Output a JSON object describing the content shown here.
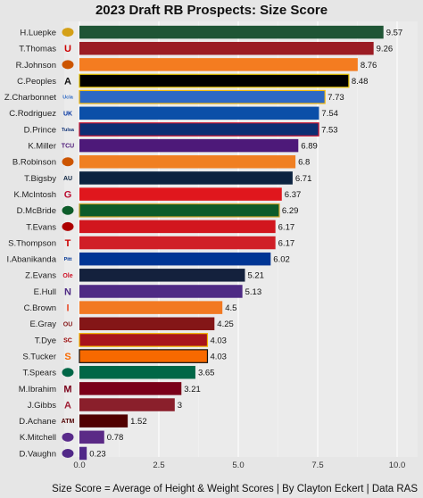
{
  "chart_data": {
    "type": "bar",
    "orientation": "horizontal",
    "title": "2023 Draft RB Prospects: Size Score",
    "caption": "Size Score = Average of Height & Weight Scores | By Clayton Eckert | Data RAS",
    "xlim": [
      0,
      10
    ],
    "xticks": [
      0,
      2.5,
      5,
      7.5,
      10
    ],
    "xtick_labels": [
      "0.0",
      "2.5",
      "5.0",
      "7.5",
      "10.0"
    ],
    "grid": "vertical",
    "players": [
      {
        "name": "H.Luepke",
        "value": 9.57,
        "label": "9.57",
        "color": "#1f5535",
        "border": "#1f5535",
        "logo": "bison-icon",
        "logo_color": "#d4a017",
        "logo_text": ""
      },
      {
        "name": "T.Thomas",
        "value": 9.26,
        "label": "9.26",
        "color": "#9b1c24",
        "border": "#9b1c24",
        "logo": "utah-u-icon",
        "logo_color": "#cc0000",
        "logo_text": "U"
      },
      {
        "name": "R.Johnson",
        "value": 8.76,
        "label": "8.76",
        "color": "#f47c20",
        "border": "#f47c20",
        "logo": "longhorn-icon",
        "logo_color": "#cc5500",
        "logo_text": ""
      },
      {
        "name": "C.Peoples",
        "value": 8.48,
        "label": "8.48",
        "color": "#000000",
        "border": "#e8c400",
        "logo": "aggie-a-icon",
        "logo_color": "#111111",
        "logo_text": "A"
      },
      {
        "name": "Z.Charbonnet",
        "value": 7.73,
        "label": "7.73",
        "color": "#2d68c4",
        "border": "#f2b90d",
        "logo": "ucla-icon",
        "logo_color": "#2d68c4",
        "logo_text": "Ucla"
      },
      {
        "name": "C.Rodriguez",
        "value": 7.54,
        "label": "7.54",
        "color": "#0b4fa8",
        "border": "#0b4fa8",
        "logo": "kentucky-uk-icon",
        "logo_color": "#0033a0",
        "logo_text": "UK"
      },
      {
        "name": "D.Prince",
        "value": 7.53,
        "label": "7.53",
        "color": "#0c2e73",
        "border": "#c8102e",
        "logo": "tulsa-icon",
        "logo_color": "#0c2e73",
        "logo_text": "Tulsa"
      },
      {
        "name": "K.Miller",
        "value": 6.89,
        "label": "6.89",
        "color": "#4d1979",
        "border": "#4d1979",
        "logo": "tcu-icon",
        "logo_color": "#4d1979",
        "logo_text": "TCU"
      },
      {
        "name": "B.Robinson",
        "value": 6.8,
        "label": "6.8",
        "color": "#f07f22",
        "border": "#f07f22",
        "logo": "longhorn-icon",
        "logo_color": "#cc5500",
        "logo_text": ""
      },
      {
        "name": "T.Bigsby",
        "value": 6.71,
        "label": "6.71",
        "color": "#0c2340",
        "border": "#0c2340",
        "logo": "auburn-au-icon",
        "logo_color": "#0c2340",
        "logo_text": "AU"
      },
      {
        "name": "K.McIntosh",
        "value": 6.37,
        "label": "6.37",
        "color": "#e0171d",
        "border": "#e0171d",
        "logo": "georgia-g-icon",
        "logo_color": "#ba0c2f",
        "logo_text": "G"
      },
      {
        "name": "D.McBride",
        "value": 6.29,
        "label": "6.29",
        "color": "#0d5c2a",
        "border": "#c9a227",
        "logo": "uab-dragon-icon",
        "logo_color": "#0d5c2a",
        "logo_text": ""
      },
      {
        "name": "T.Evans",
        "value": 6.17,
        "label": "6.17",
        "color": "#d2161e",
        "border": "#d2161e",
        "logo": "cardinal-icon",
        "logo_color": "#ad0000",
        "logo_text": ""
      },
      {
        "name": "S.Thompson",
        "value": 6.17,
        "label": "6.17",
        "color": "#d01f27",
        "border": "#d01f27",
        "logo": "texas-tech-icon",
        "logo_color": "#cc0000",
        "logo_text": "T"
      },
      {
        "name": "I.Abanikanda",
        "value": 6.02,
        "label": "6.02",
        "color": "#003594",
        "border": "#003594",
        "logo": "pitt-icon",
        "logo_color": "#003594",
        "logo_text": "Pitt"
      },
      {
        "name": "Z.Evans",
        "value": 5.21,
        "label": "5.21",
        "color": "#14213d",
        "border": "#14213d",
        "logo": "ole-miss-icon",
        "logo_color": "#ce1126",
        "logo_text": "Ole"
      },
      {
        "name": "E.Hull",
        "value": 5.13,
        "label": "5.13",
        "color": "#4e2a84",
        "border": "#4e2a84",
        "logo": "northwestern-n-icon",
        "logo_color": "#4e2a84",
        "logo_text": "N"
      },
      {
        "name": "C.Brown",
        "value": 4.5,
        "label": "4.5",
        "color": "#f27922",
        "border": "#f27922",
        "logo": "illinois-i-icon",
        "logo_color": "#e84a27",
        "logo_text": "I"
      },
      {
        "name": "E.Gray",
        "value": 4.25,
        "label": "4.25",
        "color": "#841617",
        "border": "#841617",
        "logo": "oklahoma-ou-icon",
        "logo_color": "#841617",
        "logo_text": "OU"
      },
      {
        "name": "T.Dye",
        "value": 4.03,
        "label": "4.03",
        "color": "#a8141c",
        "border": "#f2b400",
        "logo": "usc-sc-icon",
        "logo_color": "#990000",
        "logo_text": "SC"
      },
      {
        "name": "S.Tucker",
        "value": 4.03,
        "label": "4.03",
        "color": "#f76900",
        "border": "#111111",
        "logo": "syracuse-s-icon",
        "logo_color": "#f76900",
        "logo_text": "S"
      },
      {
        "name": "T.Spears",
        "value": 3.65,
        "label": "3.65",
        "color": "#006747",
        "border": "#006747",
        "logo": "tulane-wave-icon",
        "logo_color": "#006747",
        "logo_text": ""
      },
      {
        "name": "M.Ibrahim",
        "value": 3.21,
        "label": "3.21",
        "color": "#7a0019",
        "border": "#7a0019",
        "logo": "minnesota-m-icon",
        "logo_color": "#7a0019",
        "logo_text": "M"
      },
      {
        "name": "J.Gibbs",
        "value": 3,
        "label": "3",
        "color": "#8a1f2b",
        "border": "#8a1f2b",
        "logo": "alabama-a-icon",
        "logo_color": "#9e1b32",
        "logo_text": "A"
      },
      {
        "name": "D.Achane",
        "value": 1.52,
        "label": "1.52",
        "color": "#500000",
        "border": "#500000",
        "logo": "texas-am-icon",
        "logo_color": "#500000",
        "logo_text": "ATM"
      },
      {
        "name": "K.Mitchell",
        "value": 0.78,
        "label": "0.78",
        "color": "#5b2a86",
        "border": "#5b2a86",
        "logo": "ecu-pirate-icon",
        "logo_color": "#592a8a",
        "logo_text": ""
      },
      {
        "name": "D.Vaughn",
        "value": 0.23,
        "label": "0.23",
        "color": "#512888",
        "border": "#512888",
        "logo": "kstate-wildcat-icon",
        "logo_color": "#512888",
        "logo_text": ""
      }
    ]
  }
}
